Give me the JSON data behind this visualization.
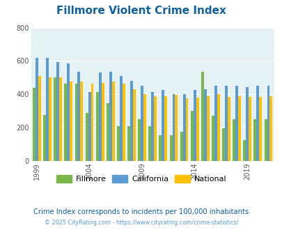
{
  "title": "Fillmore Violent Crime Index",
  "years": [
    1999,
    2000,
    2001,
    2002,
    2003,
    2004,
    2005,
    2006,
    2007,
    2008,
    2009,
    2010,
    2011,
    2012,
    2013,
    2014,
    2015,
    2016,
    2017,
    2018,
    2019,
    2020,
    2021
  ],
  "fillmore": [
    440,
    275,
    500,
    465,
    465,
    290,
    415,
    345,
    210,
    210,
    250,
    210,
    155,
    155,
    175,
    300,
    535,
    270,
    195,
    250,
    125,
    250,
    250
  ],
  "california": [
    620,
    620,
    595,
    585,
    535,
    415,
    530,
    535,
    510,
    480,
    450,
    415,
    425,
    400,
    400,
    425,
    430,
    450,
    450,
    450,
    445,
    450,
    450
  ],
  "national": [
    510,
    500,
    500,
    475,
    475,
    465,
    470,
    475,
    465,
    430,
    400,
    390,
    390,
    395,
    375,
    380,
    390,
    400,
    385,
    390,
    385,
    385,
    390
  ],
  "fillmore_color": "#7ab648",
  "california_color": "#5b9bd5",
  "national_color": "#ffc000",
  "bg_color": "#e4f1f5",
  "title_color": "#1060a0",
  "ylim": [
    0,
    800
  ],
  "yticks": [
    0,
    200,
    400,
    600,
    800
  ],
  "xtick_years": [
    1999,
    2004,
    2009,
    2014,
    2019
  ],
  "subtitle": "Crime Index corresponds to incidents per 100,000 inhabitants",
  "footer": "© 2025 CityRating.com - https://www.cityrating.com/crime-statistics/",
  "legend_labels": [
    "Fillmore",
    "California",
    "National"
  ],
  "subtitle_color": "#1060a0",
  "footer_color": "#5b9bd5"
}
